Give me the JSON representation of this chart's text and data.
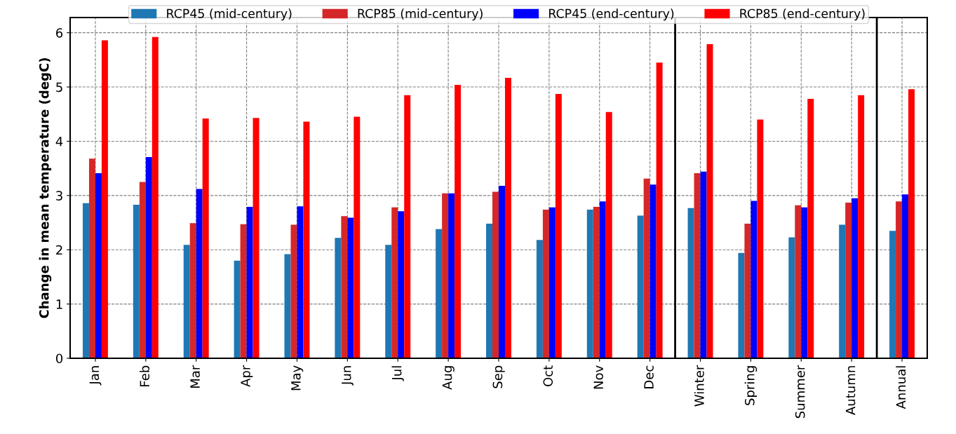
{
  "chart_data": {
    "type": "bar",
    "ylabel": "Change in mean temperature (degC)",
    "categories": [
      "Jan",
      "Feb",
      "Mar",
      "Apr",
      "May",
      "Jun",
      "Jul",
      "Aug",
      "Sep",
      "Oct",
      "Nov",
      "Dec",
      "Winter",
      "Spring",
      "Summer",
      "Autumn",
      "Annual"
    ],
    "series": [
      {
        "name": "RCP45 (mid-century)",
        "color": "#1f77b4",
        "values": [
          2.86,
          2.83,
          2.09,
          1.8,
          1.92,
          2.22,
          2.09,
          2.38,
          2.48,
          2.18,
          2.74,
          2.63,
          2.77,
          1.94,
          2.23,
          2.46,
          2.35
        ]
      },
      {
        "name": "RCP85 (mid-century)",
        "color": "#d62728",
        "values": [
          3.68,
          3.25,
          2.49,
          2.47,
          2.46,
          2.62,
          2.78,
          3.04,
          3.07,
          2.74,
          2.79,
          3.31,
          3.41,
          2.48,
          2.82,
          2.87,
          2.89
        ]
      },
      {
        "name": "RCP45 (end-century)",
        "color": "#0000ff",
        "values": [
          3.41,
          3.71,
          3.12,
          2.79,
          2.8,
          2.59,
          2.71,
          3.04,
          3.18,
          2.78,
          2.89,
          3.2,
          3.44,
          2.9,
          2.78,
          2.95,
          3.02
        ]
      },
      {
        "name": "RCP85 (end-century)",
        "color": "#ff0000",
        "values": [
          5.86,
          5.92,
          4.42,
          4.43,
          4.36,
          4.45,
          4.85,
          5.04,
          5.17,
          4.87,
          4.54,
          5.45,
          5.79,
          4.4,
          4.78,
          4.85,
          4.96
        ]
      }
    ],
    "ylim": [
      0,
      6.28
    ],
    "yticks": [
      0,
      1,
      2,
      3,
      4,
      5,
      6
    ],
    "grid": true,
    "legend": "top"
  }
}
